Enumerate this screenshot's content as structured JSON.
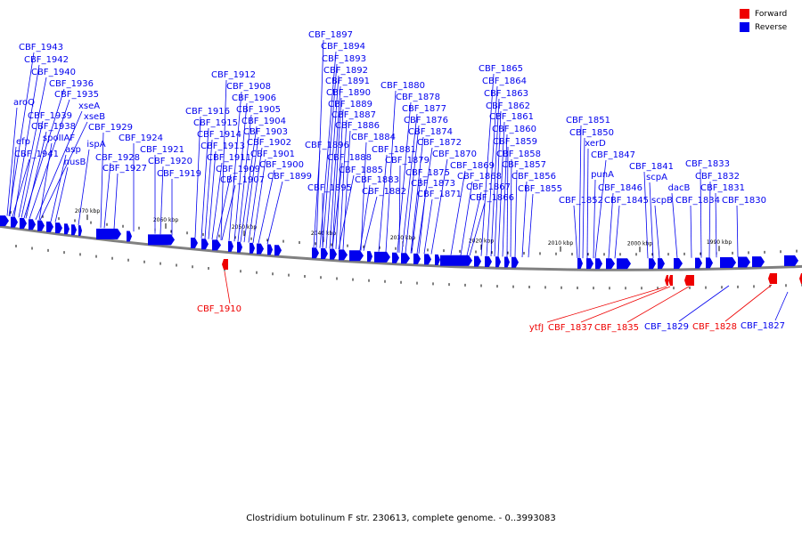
{
  "legend": [
    {
      "label": "Forward",
      "color": "#ee0000"
    },
    {
      "label": "Reverse",
      "color": "#0000ee"
    }
  ],
  "caption": "Clostridium botulinum F str. 230613, complete genome. - 0..3993083",
  "colors": {
    "forward": "#ee0000",
    "reverse": "#0000ee",
    "backbone": "#808080"
  },
  "scale_labels": [
    "2070 kbp",
    "2060 kbp",
    "2050 kbp",
    "2040 kbp",
    "2030 kbp",
    "2020 kbp",
    "2010 kbp",
    "2000 kbp",
    "1990 kbp"
  ],
  "reverse_labels": [
    "CBF_1943",
    "CBF_1942",
    "CBF_1940",
    "CBF_1936",
    "CBF_1935",
    "aroQ",
    "xseA",
    "xseB",
    "CBF_1939",
    "CBF_1938",
    "spoIIAF",
    "efp",
    "asp",
    "ispA",
    "CBF_1941",
    "nusB",
    "CBF_1929",
    "CBF_1924",
    "CBF_1921",
    "CBF_1928",
    "CBF_1927",
    "CBF_1920",
    "CBF_1919",
    "CBF_1912",
    "CBF_1908",
    "CBF_1906",
    "CBF_1905",
    "CBF_1916",
    "CBF_1915",
    "CBF_1904",
    "CBF_1914",
    "CBF_1903",
    "CBF_1913",
    "CBF_1902",
    "CBF_1911",
    "CBF_1901",
    "CBF_1909",
    "CBF_1900",
    "CBF_1907",
    "CBF_1899",
    "CBF_1897",
    "CBF_1894",
    "CBF_1893",
    "CBF_1892",
    "CBF_1891",
    "CBF_1890",
    "CBF_1889",
    "CBF_1887",
    "CBF_1886",
    "CBF_1896",
    "CBF_1888",
    "CBF_1885",
    "CBF_1895",
    "CBF_1880",
    "CBF_1878",
    "CBF_1877",
    "CBF_1876",
    "CBF_1874",
    "CBF_1884",
    "CBF_1872",
    "CBF_1881",
    "CBF_1870",
    "CBF_1879",
    "CBF_1869",
    "CBF_1875",
    "CBF_1868",
    "CBF_1873",
    "CBF_1867",
    "CBF_1883",
    "CBF_1871",
    "CBF_1882",
    "CBF_1866",
    "CBF_1865",
    "CBF_1864",
    "CBF_1863",
    "CBF_1862",
    "CBF_1861",
    "CBF_1860",
    "CBF_1859",
    "CBF_1858",
    "CBF_1857",
    "CBF_1856",
    "CBF_1855",
    "CBF_1851",
    "CBF_1850",
    "xerD",
    "CBF_1847",
    "punA",
    "CBF_1846",
    "CBF_1852",
    "CBF_1845",
    "CBF_1841",
    "scpA",
    "scpB",
    "dacB",
    "CBF_1834",
    "CBF_1833",
    "CBF_1832",
    "CBF_1831",
    "CBF_1830",
    "CBF_1829",
    "CBF_1827"
  ],
  "forward_labels": [
    "CBF_1910",
    "ytfJ",
    "CBF_1837",
    "CBF_1835",
    "CBF_1828"
  ]
}
